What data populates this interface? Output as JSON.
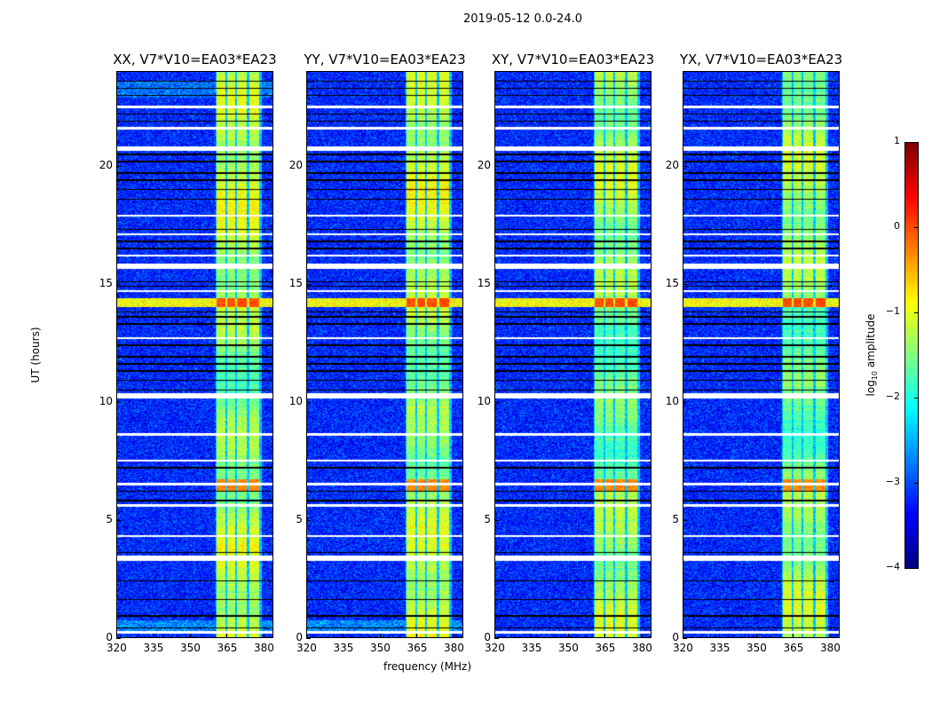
{
  "chart_data": {
    "type": "heatmap",
    "title": "2019-05-12 0.0-24.0",
    "xlabel": "frequency (MHz)",
    "ylabel": "UT (hours)",
    "xlim": [
      320,
      384
    ],
    "ylim": [
      0,
      24
    ],
    "xticks": [
      "320",
      "335",
      "350",
      "365",
      "380"
    ],
    "yticks": [
      "0",
      "5",
      "10",
      "15",
      "20"
    ],
    "panels": [
      {
        "title": "XX, V7*V10=EA03*EA23",
        "polarization": "XX"
      },
      {
        "title": "YY, V7*V10=EA03*EA23",
        "polarization": "YY"
      },
      {
        "title": "XY, V7*V10=EA03*EA23",
        "polarization": "XY"
      },
      {
        "title": "YX, V7*V10=EA03*EA23",
        "polarization": "YX"
      }
    ],
    "colorbar": {
      "label_main": "log",
      "label_sub": "10",
      "label_rest": " amplitude",
      "range": [
        -4,
        1
      ],
      "ticks": [
        "1",
        "0",
        "−1",
        "−2",
        "−3",
        "−4"
      ],
      "colormap": "jet"
    },
    "background_log_amplitude": -3.2,
    "rfi_band_mhz": [
      [
        361,
        364.5
      ],
      [
        365.5,
        368.5
      ],
      [
        369.5,
        373.5
      ],
      [
        374.5,
        378.5
      ]
    ],
    "rfi_band_log_amplitude": -1.3,
    "flagged_rows_ut": [
      22.5,
      21.6,
      20.7,
      20.8,
      17.9,
      17.1,
      16.2,
      15.7,
      15.8,
      14.7,
      12.7,
      10.2,
      10.3,
      8.6,
      7.5,
      6.5,
      5.6,
      4.3,
      3.3,
      3.4,
      0.2
    ],
    "zero_rows_ut": [
      23.6,
      23.3,
      23.0,
      22.2,
      21.9,
      20.5,
      20.2,
      19.7,
      19.4,
      19.0,
      18.6,
      17.3,
      16.8,
      16.5,
      15.1,
      14.9,
      13.8,
      13.6,
      13.3,
      12.4,
      11.9,
      11.6,
      11.3,
      10.9,
      10.5,
      7.2,
      6.2,
      5.8,
      3.6,
      2.4,
      1.6,
      0.9,
      0.4
    ],
    "high_amplitude_ut": [
      [
        14.0,
        14.4,
        0.0
      ],
      [
        6.2,
        6.7,
        -0.3
      ]
    ]
  }
}
